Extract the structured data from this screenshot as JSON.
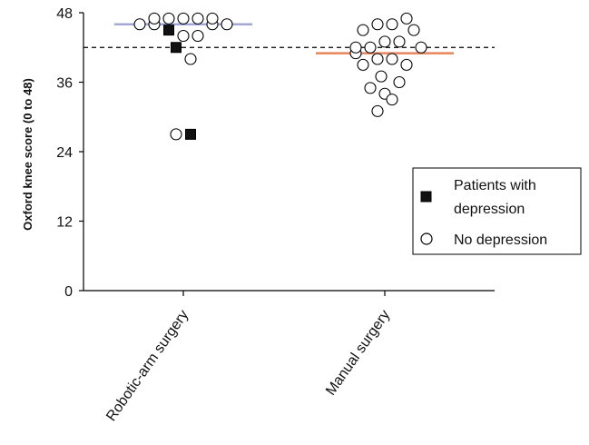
{
  "chart_data": {
    "type": "scatter",
    "title": "",
    "xlabel": "",
    "ylabel": "Oxford knee score (0 to 48)",
    "ylim": [
      0,
      48
    ],
    "yticks": [
      0,
      12,
      24,
      36,
      48
    ],
    "categories": [
      "Robotic-arm surgery",
      "Manual surgery"
    ],
    "reference_line": {
      "value": 42,
      "style": "dashed"
    },
    "median_lines": [
      {
        "category": "Robotic-arm surgery",
        "value": 46,
        "color": "#a3a9d6"
      },
      {
        "category": "Manual surgery",
        "value": 41,
        "color": "#e8855d"
      }
    ],
    "series": [
      {
        "name": "Patients with depression",
        "marker": "filled-square",
        "points": [
          {
            "category": "Robotic-arm surgery",
            "offset": -0.16,
            "y": 45
          },
          {
            "category": "Robotic-arm surgery",
            "offset": -0.08,
            "y": 42
          },
          {
            "category": "Robotic-arm surgery",
            "offset": 0.08,
            "y": 27
          }
        ]
      },
      {
        "name": "No depression",
        "marker": "open-circle",
        "points": [
          {
            "category": "Robotic-arm surgery",
            "offset": -0.48,
            "y": 46
          },
          {
            "category": "Robotic-arm surgery",
            "offset": -0.32,
            "y": 46
          },
          {
            "category": "Robotic-arm surgery",
            "offset": 0.48,
            "y": 46
          },
          {
            "category": "Robotic-arm surgery",
            "offset": 0.32,
            "y": 46
          },
          {
            "category": "Robotic-arm surgery",
            "offset": -0.32,
            "y": 47
          },
          {
            "category": "Robotic-arm surgery",
            "offset": -0.16,
            "y": 47
          },
          {
            "category": "Robotic-arm surgery",
            "offset": 0.0,
            "y": 47
          },
          {
            "category": "Robotic-arm surgery",
            "offset": 0.16,
            "y": 47
          },
          {
            "category": "Robotic-arm surgery",
            "offset": 0.32,
            "y": 47
          },
          {
            "category": "Robotic-arm surgery",
            "offset": 0.0,
            "y": 44
          },
          {
            "category": "Robotic-arm surgery",
            "offset": 0.16,
            "y": 44
          },
          {
            "category": "Robotic-arm surgery",
            "offset": 0.08,
            "y": 40
          },
          {
            "category": "Robotic-arm surgery",
            "offset": -0.08,
            "y": 27
          },
          {
            "category": "Manual surgery",
            "offset": -0.32,
            "y": 41
          },
          {
            "category": "Manual surgery",
            "offset": -0.32,
            "y": 42
          },
          {
            "category": "Manual surgery",
            "offset": -0.24,
            "y": 45
          },
          {
            "category": "Manual surgery",
            "offset": -0.08,
            "y": 46
          },
          {
            "category": "Manual surgery",
            "offset": 0.08,
            "y": 46
          },
          {
            "category": "Manual surgery",
            "offset": 0.24,
            "y": 47
          },
          {
            "category": "Manual surgery",
            "offset": 0.32,
            "y": 45
          },
          {
            "category": "Manual surgery",
            "offset": -0.16,
            "y": 42
          },
          {
            "category": "Manual surgery",
            "offset": 0.0,
            "y": 43
          },
          {
            "category": "Manual surgery",
            "offset": 0.16,
            "y": 43
          },
          {
            "category": "Manual surgery",
            "offset": 0.4,
            "y": 42
          },
          {
            "category": "Manual surgery",
            "offset": -0.24,
            "y": 39
          },
          {
            "category": "Manual surgery",
            "offset": -0.08,
            "y": 40
          },
          {
            "category": "Manual surgery",
            "offset": 0.08,
            "y": 40
          },
          {
            "category": "Manual surgery",
            "offset": 0.24,
            "y": 39
          },
          {
            "category": "Manual surgery",
            "offset": -0.04,
            "y": 37
          },
          {
            "category": "Manual surgery",
            "offset": 0.16,
            "y": 36
          },
          {
            "category": "Manual surgery",
            "offset": -0.16,
            "y": 35
          },
          {
            "category": "Manual surgery",
            "offset": 0.0,
            "y": 34
          },
          {
            "category": "Manual surgery",
            "offset": 0.08,
            "y": 33
          },
          {
            "category": "Manual surgery",
            "offset": -0.08,
            "y": 31
          }
        ]
      }
    ],
    "legend": {
      "position": "right",
      "items": [
        {
          "label_lines": [
            "Patients with",
            "depression"
          ],
          "marker": "filled-square"
        },
        {
          "label_lines": [
            "No depression"
          ],
          "marker": "open-circle"
        }
      ]
    },
    "colors": {
      "axis": "#000000",
      "marker_stroke": "#000000"
    }
  }
}
